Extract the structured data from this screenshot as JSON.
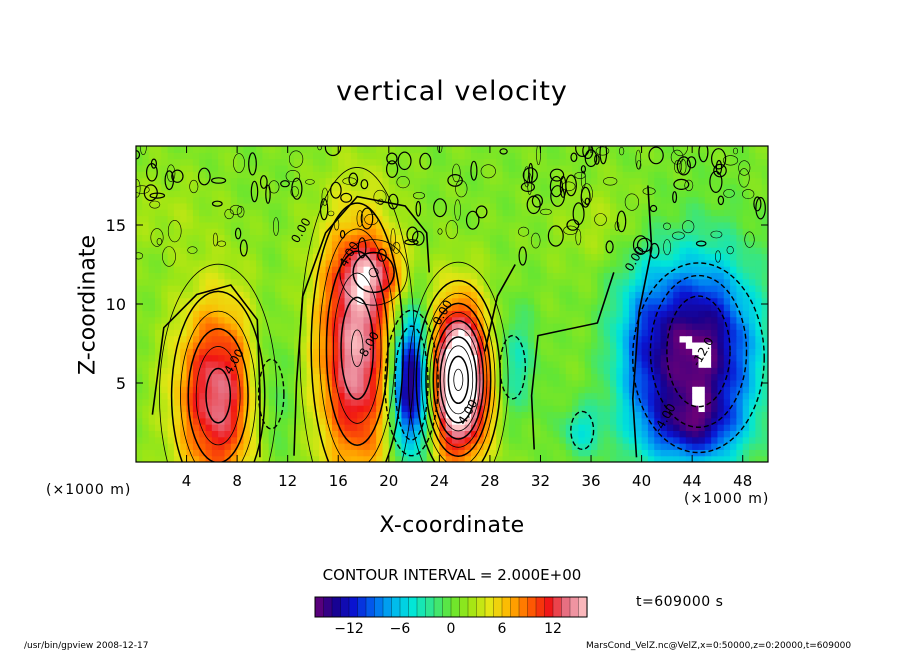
{
  "chart_data": {
    "type": "heatmap",
    "title": "vertical velocity",
    "xlabel": "X-coordinate",
    "ylabel": "Z-coordinate",
    "x_unit": "(×1000 m)",
    "y_unit": "(×1000 m)",
    "xlim": [
      0,
      50
    ],
    "ylim": [
      0,
      20
    ],
    "xticks": [
      4,
      8,
      12,
      16,
      20,
      24,
      28,
      32,
      36,
      40,
      44,
      48
    ],
    "yticks": [
      5,
      10,
      15
    ],
    "contour_interval_label": "CONTOUR INTERVAL = 2.000E+00",
    "colorbar": {
      "min": -16,
      "max": 16,
      "ticks": [
        -12,
        -6,
        0,
        6,
        12
      ]
    },
    "contour_labels": [
      {
        "text": "4.00",
        "x": 7.5,
        "y": 5.5
      },
      {
        "text": "0.00",
        "x": 12.8,
        "y": 13.8
      },
      {
        "text": "4.00",
        "x": 16.6,
        "y": 12.3
      },
      {
        "text": "0.00",
        "x": 24.0,
        "y": 8.6
      },
      {
        "text": "8.00",
        "x": 18.2,
        "y": 6.6
      },
      {
        "text": "4.00",
        "x": 26.0,
        "y": 2.3
      },
      {
        "text": "0.00",
        "x": 39.2,
        "y": 12.0
      },
      {
        "text": "-12.0",
        "x": 44.5,
        "y": 6.0
      },
      {
        "text": "-4.00",
        "x": 41.5,
        "y": 1.8
      }
    ],
    "features": [
      {
        "x": 6.5,
        "y": 4.2,
        "sx": 2.4,
        "sy": 4.3,
        "amp": 13
      },
      {
        "x": 17.5,
        "y": 7.2,
        "sx": 2.3,
        "sy": 5.8,
        "amp": 14
      },
      {
        "x": 18.8,
        "y": 12.0,
        "sx": 1.8,
        "sy": 1.4,
        "amp": 6
      },
      {
        "x": 21.8,
        "y": 5.0,
        "sx": 1.2,
        "sy": 3.2,
        "amp": -20
      },
      {
        "x": 25.5,
        "y": 5.2,
        "sx": 1.8,
        "sy": 3.4,
        "amp": 22
      },
      {
        "x": 29.8,
        "y": 6.2,
        "sx": 1.3,
        "sy": 2.5,
        "amp": -5
      },
      {
        "x": 35.3,
        "y": 2.0,
        "sx": 1.2,
        "sy": 1.2,
        "amp": -5
      },
      {
        "x": 10.5,
        "y": 4.5,
        "sx": 1.5,
        "sy": 3.5,
        "amp": -4
      },
      {
        "x": 44.5,
        "y": 7.0,
        "sx": 3.3,
        "sy": 4.2,
        "amp": -17
      },
      {
        "x": 40.0,
        "y": 7.0,
        "sx": 1.8,
        "sy": 4.5,
        "amp": -5
      },
      {
        "x": 44.0,
        "y": 2.2,
        "sx": 2.5,
        "sy": 1.5,
        "amp": -7
      },
      {
        "x": 37.5,
        "y": 15.0,
        "sx": 3.0,
        "sy": 2.0,
        "amp": 2
      },
      {
        "x": 2.0,
        "y": 16.0,
        "sx": 3.0,
        "sy": 2.0,
        "amp": 1.5
      }
    ],
    "zero_contour_paths": [
      [
        [
          1.3,
          3.0
        ],
        [
          2.2,
          8.5
        ],
        [
          4.8,
          10.6
        ],
        [
          7.5,
          11.2
        ],
        [
          9.6,
          9.0
        ],
        [
          9.8,
          4.5
        ],
        [
          9.8,
          0.3
        ]
      ],
      [
        [
          12.5,
          0.4
        ],
        [
          12.7,
          5.0
        ],
        [
          13.2,
          10.5
        ],
        [
          15.0,
          14.5
        ],
        [
          17.5,
          16.8
        ],
        [
          21.3,
          16.2
        ],
        [
          23.0,
          14.5
        ],
        [
          23.2,
          12.0
        ]
      ],
      [
        [
          27.6,
          7.0
        ],
        [
          28.6,
          10.5
        ],
        [
          30.0,
          12.5
        ]
      ],
      [
        [
          31.5,
          0.8
        ],
        [
          31.3,
          4.2
        ],
        [
          31.8,
          8.0
        ],
        [
          33.0,
          8.2
        ],
        [
          36.5,
          8.8
        ],
        [
          37.8,
          12.0
        ]
      ],
      [
        [
          39.6,
          0.3
        ],
        [
          39.3,
          4.0
        ],
        [
          39.8,
          9.5
        ],
        [
          40.8,
          13.5
        ],
        [
          40.5,
          17.5
        ]
      ]
    ],
    "dashed_contours": [
      {
        "x": 21.8,
        "y": 5.0,
        "rx": 1.3,
        "ry": 3.6
      },
      {
        "x": 21.8,
        "y": 5.0,
        "rx": 2.1,
        "ry": 4.6
      },
      {
        "x": 29.8,
        "y": 6.0,
        "rx": 1.0,
        "ry": 2.0
      },
      {
        "x": 35.3,
        "y": 2.0,
        "rx": 0.9,
        "ry": 1.2
      },
      {
        "x": 44.5,
        "y": 7.0,
        "rx": 2.5,
        "ry": 3.5
      },
      {
        "x": 44.5,
        "y": 7.0,
        "rx": 3.8,
        "ry": 4.8
      },
      {
        "x": 44.5,
        "y": 6.6,
        "rx": 5.2,
        "ry": 6.0
      },
      {
        "x": 10.7,
        "y": 4.3,
        "rx": 1.0,
        "ry": 2.2
      }
    ],
    "time_label": "t=609000 s"
  },
  "footer": {
    "left": "/usr/bin/gpview   2008-12-17",
    "right": "MarsCond_VelZ.nc@VelZ,x=0:50000,z=0:20000,t=609000"
  },
  "colors": {
    "palette": [
      "#6a0078",
      "#18008c",
      "#0a14d2",
      "#0064f0",
      "#00b4f0",
      "#00e6d8",
      "#32e68c",
      "#64e632",
      "#a0e614",
      "#e6e614",
      "#ffb400",
      "#ff6400",
      "#f01414",
      "#e6788c",
      "#ffc8c8"
    ]
  }
}
